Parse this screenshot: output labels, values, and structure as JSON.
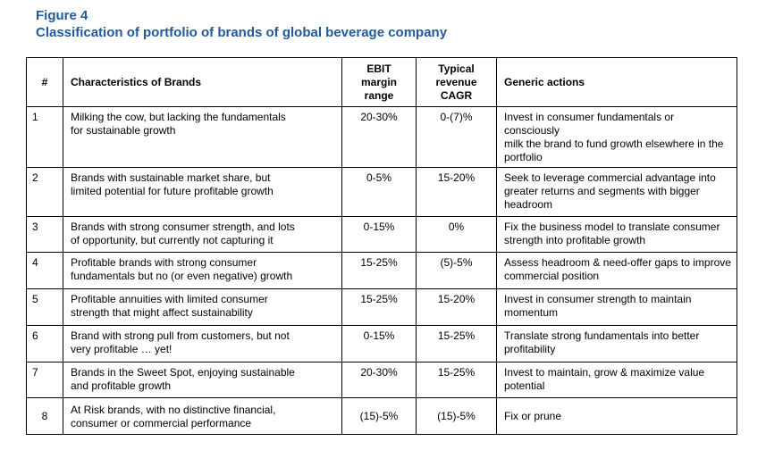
{
  "figure": {
    "label": "Figure 4",
    "title": "Classification of portfolio of brands of global beverage company"
  },
  "table": {
    "headers": {
      "num": "#",
      "characteristics": "Characteristics of Brands",
      "ebit_line1": "EBIT",
      "ebit_line2": "margin",
      "ebit_line3": "range",
      "cagr_line1": "Typical",
      "cagr_line2": "revenue",
      "cagr_line3": "CAGR",
      "actions": "Generic actions"
    },
    "rows": [
      {
        "num": "1",
        "char1": "Milking the cow, but lacking the fundamentals",
        "char2": "for sustainable growth",
        "ebit": "20-30%",
        "cagr": "0-(7)%",
        "act1": "Invest in consumer fundamentals or consciously",
        "act2": "milk the brand to fund growth elsewhere in the",
        "act3": "portfolio"
      },
      {
        "num": "2",
        "char1": "Brands with sustainable market share, but",
        "char2": "limited potential for future profitable growth",
        "ebit": "0-5%",
        "cagr": "15-20%",
        "act1": "Seek to leverage commercial advantage into",
        "act2": "greater returns and segments with bigger",
        "act3": "headroom"
      },
      {
        "num": "3",
        "char1": "Brands with strong consumer strength, and lots",
        "char2": "of opportunity, but currently not capturing it",
        "ebit": "0-15%",
        "cagr": "0%",
        "act1": "Fix the business model to translate consumer",
        "act2": "strength into profitable growth",
        "act3": ""
      },
      {
        "num": "4",
        "char1": "Profitable brands with strong consumer",
        "char2": "fundamentals but no (or even negative) growth",
        "ebit": "15-25%",
        "cagr": "(5)-5%",
        "act1": "Assess headroom & need-offer gaps to improve",
        "act2": "commercial position",
        "act3": ""
      },
      {
        "num": "5",
        "char1": "Profitable annuities with limited consumer",
        "char2": "strength that might affect sustainability",
        "ebit": "15-25%",
        "cagr": "15-20%",
        "act1": "Invest in consumer strength to maintain",
        "act2": "momentum",
        "act3": ""
      },
      {
        "num": "6",
        "char1": "Brand with strong pull from customers, but not",
        "char2": "very profitable … yet!",
        "ebit": "0-15%",
        "cagr": "15-25%",
        "act1": "Translate strong fundamentals into better",
        "act2": "profitability",
        "act3": ""
      },
      {
        "num": "7",
        "char1": "Brands in the Sweet Spot, enjoying sustainable",
        "char2": "and profitable growth",
        "ebit": "20-30%",
        "cagr": "15-25%",
        "act1": "Invest to maintain, grow & maximize value",
        "act2": "potential",
        "act3": ""
      },
      {
        "num": "8",
        "char1": "At Risk brands, with no distinctive financial,",
        "char2": "consumer or commercial performance",
        "ebit": "(15)-5%",
        "cagr": "(15)-5%",
        "act1": "Fix or prune",
        "act2": "",
        "act3": ""
      }
    ]
  }
}
